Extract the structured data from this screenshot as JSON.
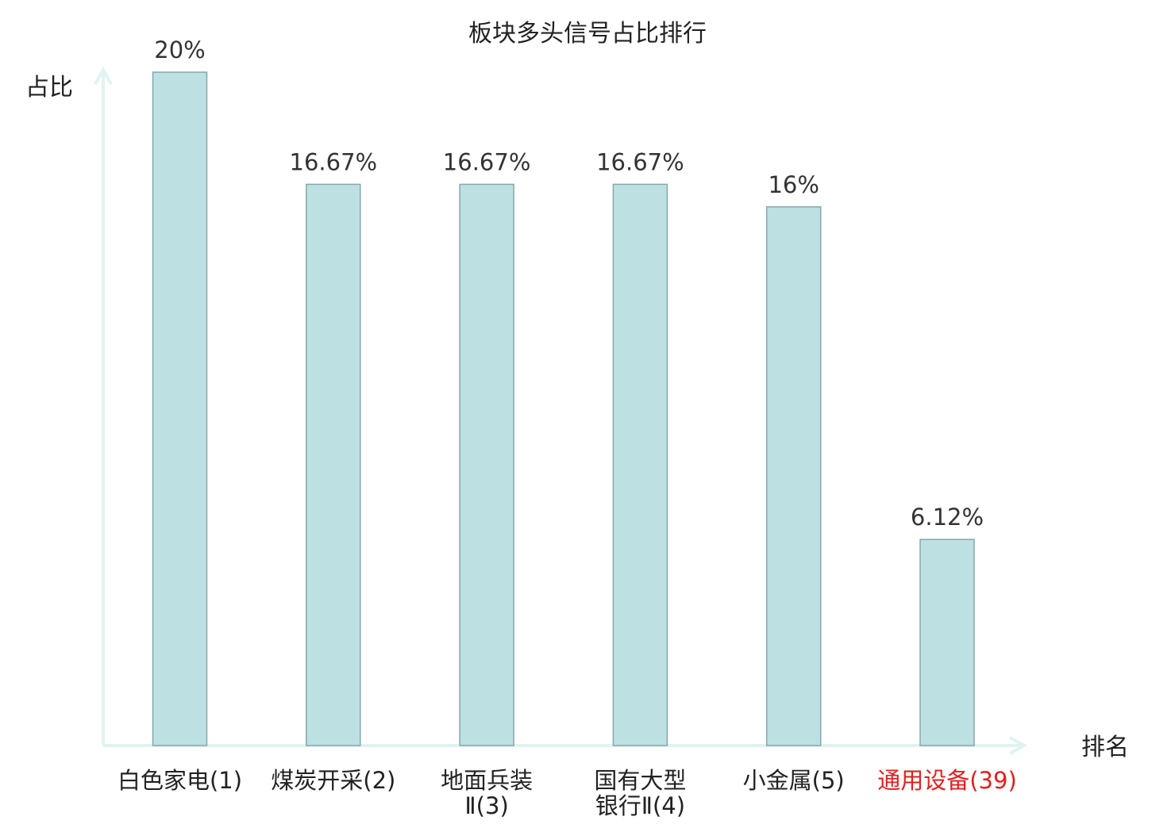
{
  "chart_data": {
    "type": "bar",
    "title": "板块多头信号占比排行",
    "ylabel": "占比",
    "xlabel": "排名",
    "ylim": [
      0,
      20
    ],
    "grid": false,
    "categories": [
      {
        "lines": [
          "白色家电",
          "(1)"
        ],
        "highlight": false
      },
      {
        "lines": [
          "煤炭开采",
          "(2)"
        ],
        "highlight": false
      },
      {
        "lines": [
          "地面兵装",
          "Ⅱ(3)"
        ],
        "highlight": false
      },
      {
        "lines": [
          "国有大型",
          "银行Ⅱ(4)"
        ],
        "highlight": false
      },
      {
        "lines": [
          "小金属",
          "(5)"
        ],
        "highlight": false
      },
      {
        "lines": [
          "通用设备",
          "(39)"
        ],
        "highlight": true
      }
    ],
    "values": [
      20,
      16.67,
      16.67,
      16.67,
      16,
      6.12
    ],
    "value_labels": [
      "20%",
      "16.67%",
      "16.67%",
      "16.67%",
      "16%",
      "6.12%"
    ],
    "colors": {
      "bar_fill": "#bde0e3",
      "bar_stroke": "#86a8ab",
      "axis": "#e0f3f1",
      "text": "#222222",
      "label_text": "#333333",
      "highlight_text": "#e0201f"
    }
  }
}
